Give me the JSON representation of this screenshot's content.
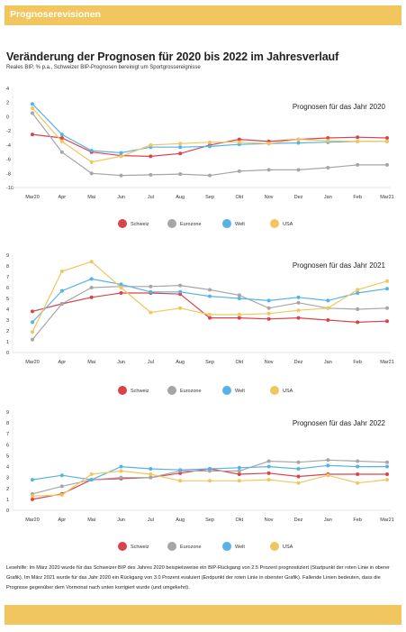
{
  "header": {
    "title": "Prognoserevisionen"
  },
  "title": "Veränderung der Prognosen für 2020 bis 2022 im Jahresverlauf",
  "subtitle": "Reales BIP, % p.a., Schweizer BIP-Prognosen bereinigt um Sportgrossereignisse",
  "note": "Lesehilfe: Im März 2020 wurde für das Schweizer BIP des Jahres 2020 beispielsweise ein BIP-Rückgang von 2.5 Prozent prognostiziert (Startpunkt der roten Linie in oberer Grafik). Im März 2021 wurde für das Jahr 2020 ein Rückgang von 3.0 Prozent evaluiert (Endpunkt der roten Linie in oberster Grafik). Fallende Linien bedeuten, dass die Prognose gegenüber dem Vormonat nach unten korrigiert wurde (und umgekehrt).",
  "colors": {
    "Schweiz": "#d9434b",
    "Eurozone": "#a6a6a6",
    "Welt": "#56b3e6",
    "USA": "#f2c65f",
    "banner": "#f2c65f"
  },
  "chart_data": [
    {
      "type": "line",
      "title": "Prognosen für das Jahr 2020",
      "x": [
        "Mar20",
        "Apr",
        "Mai",
        "Jun",
        "Jul",
        "Aug",
        "Sep",
        "Okt",
        "Nov",
        "Dez",
        "Jan",
        "Feb",
        "Mar21"
      ],
      "ylim": [
        -10,
        4
      ],
      "yticks": [
        -10,
        -8,
        -6,
        -4,
        -2,
        0,
        2,
        4
      ],
      "grid": false,
      "legend": "bottom",
      "series": [
        {
          "name": "Schweiz",
          "values": [
            -2.5,
            -3.0,
            -5.0,
            -5.5,
            -5.6,
            -5.2,
            -4.0,
            -3.2,
            -3.5,
            -3.2,
            -3.0,
            -2.9,
            -3.0
          ]
        },
        {
          "name": "Eurozone",
          "values": [
            0.5,
            -5.0,
            -8.0,
            -8.3,
            -8.2,
            -8.1,
            -8.3,
            -7.7,
            -7.5,
            -7.5,
            -7.2,
            -6.8,
            -6.8
          ]
        },
        {
          "name": "Welt",
          "values": [
            1.8,
            -2.5,
            -4.8,
            -5.1,
            -4.3,
            -4.3,
            -4.2,
            -3.9,
            -3.8,
            -3.7,
            -3.6,
            -3.5,
            -3.5
          ]
        },
        {
          "name": "USA",
          "values": [
            1.2,
            -3.5,
            -6.4,
            -5.6,
            -4.0,
            -3.8,
            -3.6,
            -3.6,
            -3.8,
            -3.2,
            -3.4,
            -3.5,
            -3.5
          ]
        }
      ]
    },
    {
      "type": "line",
      "title": "Prognosen für das Jahr 2021",
      "x": [
        "Mar20",
        "Apr",
        "Mai",
        "Jun",
        "Jul",
        "Aug",
        "Sep",
        "Okt",
        "Nov",
        "Dez",
        "Jan",
        "Feb",
        "Mar21"
      ],
      "ylim": [
        0,
        9
      ],
      "yticks": [
        0,
        1,
        2,
        3,
        4,
        5,
        6,
        7,
        8,
        9
      ],
      "grid": false,
      "legend": "bottom",
      "series": [
        {
          "name": "Schweiz",
          "values": [
            3.8,
            4.5,
            5.1,
            5.5,
            5.5,
            5.4,
            3.2,
            3.2,
            3.1,
            3.2,
            3.0,
            2.8,
            2.9
          ]
        },
        {
          "name": "Eurozone",
          "values": [
            1.2,
            4.5,
            6.0,
            6.1,
            6.1,
            6.2,
            5.8,
            5.3,
            4.1,
            4.6,
            4.1,
            4.0,
            4.1
          ]
        },
        {
          "name": "Welt",
          "values": [
            2.8,
            5.7,
            6.8,
            6.3,
            5.6,
            5.6,
            5.2,
            5.0,
            4.8,
            5.1,
            4.8,
            5.5,
            5.9
          ]
        },
        {
          "name": "USA",
          "values": [
            1.9,
            7.5,
            8.4,
            6.0,
            3.7,
            4.1,
            3.5,
            3.5,
            3.6,
            3.9,
            4.1,
            5.8,
            6.6
          ]
        }
      ]
    },
    {
      "type": "line",
      "title": "Prognosen für das Jahr 2022",
      "x": [
        "Mar20",
        "Apr",
        "Mai",
        "Jun",
        "Jul",
        "Aug",
        "Sep",
        "Okt",
        "Nov",
        "Dez",
        "Jan",
        "Feb",
        "Mar21"
      ],
      "ylim": [
        0,
        9
      ],
      "yticks": [
        0,
        1,
        2,
        3,
        4,
        5,
        6,
        7,
        8,
        9
      ],
      "grid": false,
      "legend": "bottom",
      "series": [
        {
          "name": "Schweiz",
          "values": [
            1.0,
            1.5,
            2.8,
            2.9,
            3.0,
            3.4,
            3.8,
            3.3,
            3.4,
            3.1,
            3.3,
            3.3,
            3.3
          ]
        },
        {
          "name": "Eurozone",
          "values": [
            1.5,
            2.2,
            2.8,
            3.0,
            3.0,
            3.6,
            3.6,
            3.6,
            4.5,
            4.4,
            4.6,
            4.5,
            4.4
          ]
        },
        {
          "name": "Welt",
          "values": [
            2.8,
            3.2,
            2.8,
            4.0,
            3.8,
            3.7,
            3.8,
            3.9,
            4.0,
            3.8,
            4.1,
            4.0,
            4.0
          ]
        },
        {
          "name": "USA",
          "values": [
            1.3,
            1.4,
            3.3,
            3.6,
            3.3,
            2.7,
            2.7,
            2.7,
            2.8,
            2.5,
            3.2,
            2.5,
            2.8
          ]
        }
      ]
    }
  ]
}
